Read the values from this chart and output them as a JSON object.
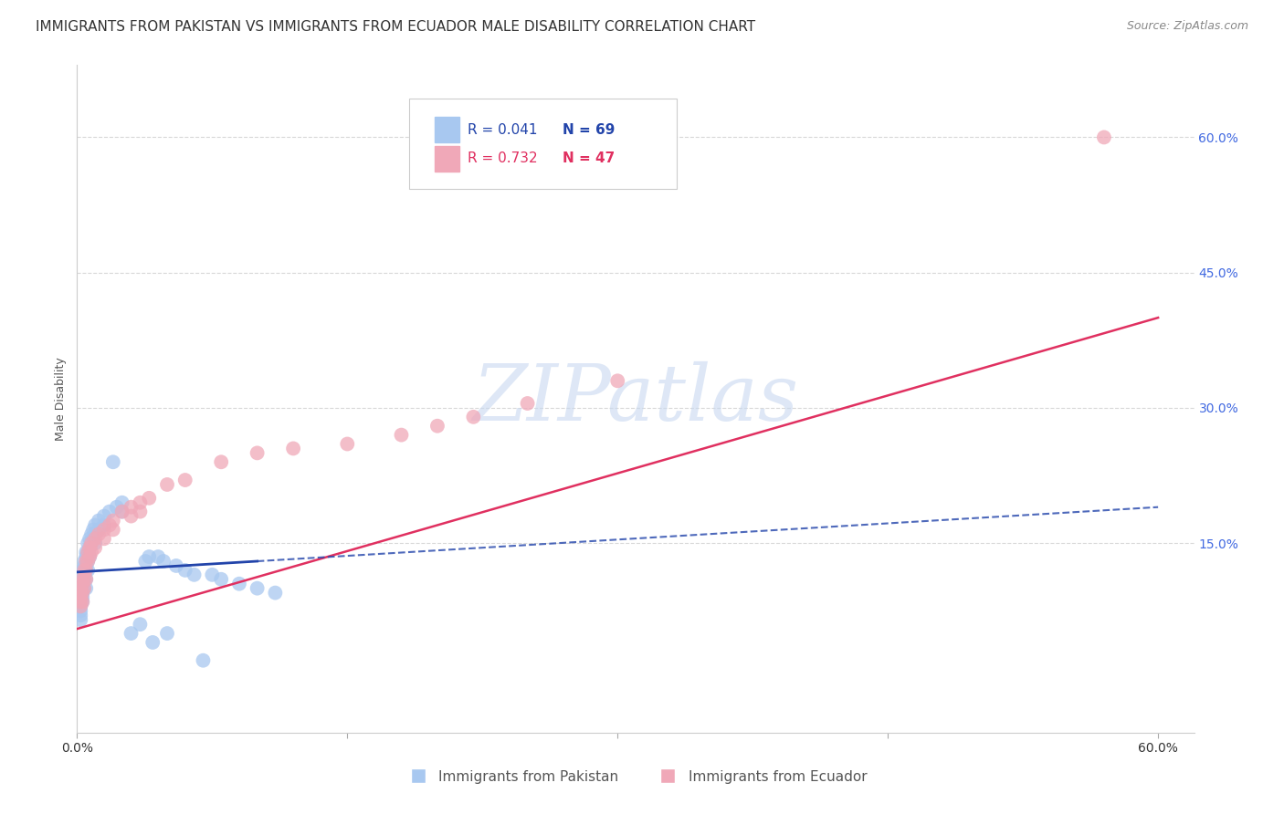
{
  "title": "IMMIGRANTS FROM PAKISTAN VS IMMIGRANTS FROM ECUADOR MALE DISABILITY CORRELATION CHART",
  "source": "Source: ZipAtlas.com",
  "ylabel_label": "Male Disability",
  "xlim": [
    0.0,
    0.62
  ],
  "ylim": [
    -0.06,
    0.68
  ],
  "x_tick_vals": [
    0.0,
    0.15,
    0.3,
    0.45,
    0.6
  ],
  "x_tick_labels": [
    "0.0%",
    "",
    "",
    "",
    "60.0%"
  ],
  "y_tick_vals": [
    0.15,
    0.3,
    0.45,
    0.6
  ],
  "y_tick_labels": [
    "15.0%",
    "30.0%",
    "45.0%",
    "60.0%"
  ],
  "pakistan_color": "#a8c8f0",
  "ecuador_color": "#f0a8b8",
  "pakistan_line_color": "#2244aa",
  "ecuador_line_color": "#e03060",
  "watermark_text": "ZIPatlas",
  "watermark_color": "#c8d8f0",
  "grid_color": "#d8d8d8",
  "background_color": "#ffffff",
  "title_fontsize": 11,
  "source_fontsize": 9,
  "tick_fontsize": 10,
  "ylabel_fontsize": 9,
  "right_tick_color": "#4169e1",
  "legend_r1": "R = 0.041",
  "legend_n1": "N = 69",
  "legend_r2": "R = 0.732",
  "legend_n2": "N = 47",
  "pakistan_scatter_x": [
    0.002,
    0.002,
    0.002,
    0.002,
    0.002,
    0.002,
    0.002,
    0.002,
    0.002,
    0.002,
    0.003,
    0.003,
    0.003,
    0.003,
    0.003,
    0.003,
    0.003,
    0.003,
    0.004,
    0.004,
    0.004,
    0.004,
    0.004,
    0.005,
    0.005,
    0.005,
    0.005,
    0.005,
    0.005,
    0.006,
    0.006,
    0.006,
    0.006,
    0.007,
    0.007,
    0.007,
    0.008,
    0.008,
    0.009,
    0.009,
    0.01,
    0.01,
    0.01,
    0.012,
    0.012,
    0.015,
    0.015,
    0.018,
    0.02,
    0.022,
    0.025,
    0.025,
    0.03,
    0.035,
    0.038,
    0.04,
    0.042,
    0.045,
    0.048,
    0.05,
    0.055,
    0.06,
    0.065,
    0.07,
    0.075,
    0.08,
    0.09,
    0.1,
    0.11
  ],
  "pakistan_scatter_y": [
    0.11,
    0.105,
    0.1,
    0.095,
    0.09,
    0.085,
    0.08,
    0.075,
    0.07,
    0.065,
    0.12,
    0.115,
    0.11,
    0.105,
    0.1,
    0.095,
    0.09,
    0.085,
    0.13,
    0.125,
    0.12,
    0.11,
    0.1,
    0.14,
    0.135,
    0.125,
    0.12,
    0.11,
    0.1,
    0.15,
    0.14,
    0.13,
    0.12,
    0.155,
    0.145,
    0.135,
    0.16,
    0.15,
    0.165,
    0.155,
    0.17,
    0.16,
    0.15,
    0.175,
    0.165,
    0.18,
    0.17,
    0.185,
    0.24,
    0.19,
    0.195,
    0.185,
    0.05,
    0.06,
    0.13,
    0.135,
    0.04,
    0.135,
    0.13,
    0.05,
    0.125,
    0.12,
    0.115,
    0.02,
    0.115,
    0.11,
    0.105,
    0.1,
    0.095
  ],
  "ecuador_scatter_x": [
    0.002,
    0.002,
    0.002,
    0.002,
    0.002,
    0.003,
    0.003,
    0.003,
    0.003,
    0.004,
    0.004,
    0.004,
    0.005,
    0.005,
    0.005,
    0.006,
    0.006,
    0.007,
    0.007,
    0.008,
    0.008,
    0.01,
    0.01,
    0.012,
    0.015,
    0.015,
    0.018,
    0.02,
    0.02,
    0.025,
    0.03,
    0.03,
    0.035,
    0.035,
    0.04,
    0.05,
    0.06,
    0.08,
    0.1,
    0.12,
    0.15,
    0.18,
    0.2,
    0.22,
    0.25,
    0.3,
    0.57
  ],
  "ecuador_scatter_y": [
    0.1,
    0.095,
    0.09,
    0.085,
    0.08,
    0.11,
    0.105,
    0.095,
    0.085,
    0.12,
    0.11,
    0.1,
    0.13,
    0.12,
    0.11,
    0.14,
    0.13,
    0.145,
    0.135,
    0.15,
    0.14,
    0.155,
    0.145,
    0.16,
    0.165,
    0.155,
    0.17,
    0.175,
    0.165,
    0.185,
    0.19,
    0.18,
    0.195,
    0.185,
    0.2,
    0.215,
    0.22,
    0.24,
    0.25,
    0.255,
    0.26,
    0.27,
    0.28,
    0.29,
    0.305,
    0.33,
    0.6
  ],
  "pak_trend_x0": 0.0,
  "pak_trend_y0": 0.118,
  "pak_trend_x1": 0.1,
  "pak_trend_y1": 0.13,
  "pak_trend_x_dash_start": 0.1,
  "pak_trend_x_dash_end": 0.6,
  "pak_trend_y_dash_end": 0.152,
  "ecu_trend_x0": 0.0,
  "ecu_trend_y0": 0.055,
  "ecu_trend_x1": 0.6,
  "ecu_trend_y1": 0.4
}
